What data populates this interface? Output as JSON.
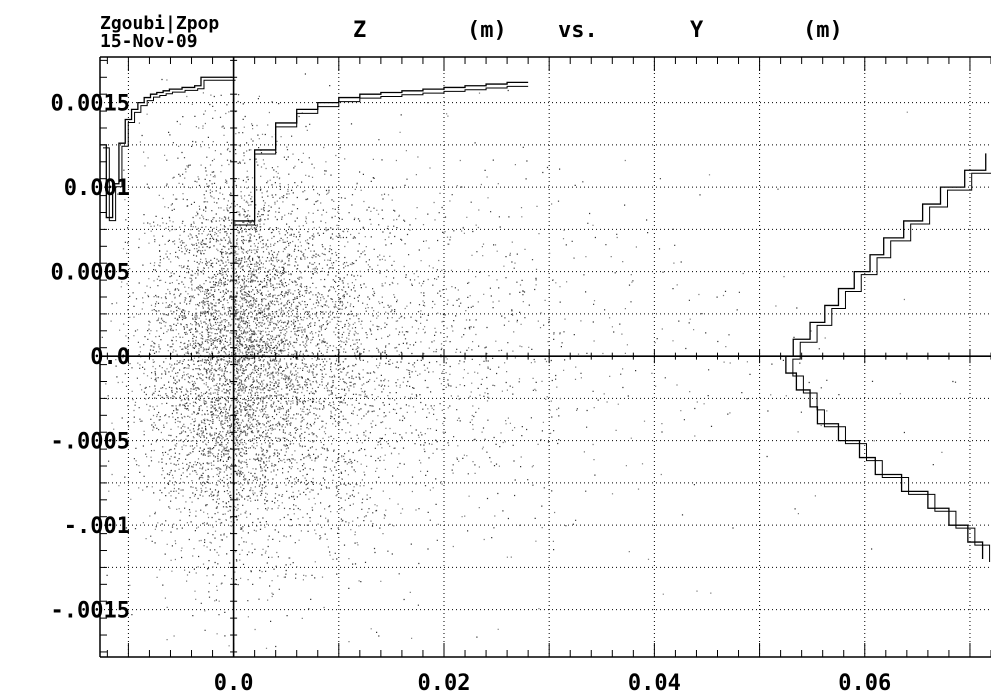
{
  "header": {
    "program": "Zgoubi|Zpop",
    "date": "15-Nov-09",
    "title_words": [
      "Z",
      "(m)",
      "vs.",
      "Y",
      "(m)"
    ]
  },
  "chart_data": {
    "type": "scatter",
    "title": "Z (m) vs. Y (m)",
    "xlabel": "Y (m)",
    "ylabel": "Z (m)",
    "xlim": [
      -0.0127,
      0.072
    ],
    "ylim": [
      -0.00178,
      0.00177
    ],
    "x_ticks": [
      {
        "value": 0.0,
        "label": "0.0"
      },
      {
        "value": 0.02,
        "label": "0.02"
      },
      {
        "value": 0.04,
        "label": "0.04"
      },
      {
        "value": 0.06,
        "label": "0.06"
      }
    ],
    "y_ticks": [
      {
        "value": 0.0015,
        "label": "0.0015"
      },
      {
        "value": 0.001,
        "label": "0.001"
      },
      {
        "value": 0.0005,
        "label": "0.0005"
      },
      {
        "value": 0.0,
        "label": "0.0"
      },
      {
        "value": -0.0005,
        "label": "-.0005"
      },
      {
        "value": -0.001,
        "label": "-.001"
      },
      {
        "value": -0.0015,
        "label": "-.0015"
      }
    ],
    "grid": true,
    "grid_style": "dotted",
    "point_color": "#333333",
    "scatter_description": "Dense cloud of particle coordinates concentrated near Y=0 and Z=0, decaying with increasing Y; a second cloud is drawn mirrored at negative Y.",
    "series": [
      {
        "kind": "histogram",
        "orientation": "horizontal",
        "edges": [
          0.0,
          0.002,
          0.004,
          0.006,
          0.008,
          0.01,
          0.012,
          0.014,
          0.016,
          0.018,
          0.02,
          0.022,
          0.024,
          0.026,
          0.028
        ],
        "values": [
          0.0008,
          0.00122,
          0.00138,
          0.00146,
          0.0015,
          0.00153,
          0.00155,
          0.00156,
          0.00157,
          0.00158,
          0.00159,
          0.0016,
          0.00161,
          0.00162
        ]
      },
      {
        "kind": "histogram",
        "orientation": "horizontal",
        "edges": [
          -0.0127,
          -0.0121,
          -0.0115,
          -0.0109,
          -0.0103,
          -0.0097,
          -0.0091,
          -0.0085,
          -0.0079,
          -0.0073,
          -0.0067,
          -0.0061,
          -0.0055,
          -0.0049,
          -0.0043,
          -0.0037,
          -0.0031,
          -0.0025,
          -0.0019,
          -0.0013,
          -0.0007,
          -0.0001
        ],
        "values": [
          0.00125,
          0.00082,
          0.00102,
          0.00126,
          0.0014,
          0.00146,
          0.0015,
          0.00153,
          0.00155,
          0.00156,
          0.00157,
          0.00158,
          0.00158,
          0.00159,
          0.00159,
          0.0016,
          0.00165,
          0.00165,
          0.00165,
          0.00165,
          0.00165
        ]
      },
      {
        "kind": "histogram",
        "orientation": "vertical",
        "z_centers": [
          0.00115,
          0.00105,
          0.00095,
          0.00085,
          0.00075,
          0.00065,
          0.00055,
          0.00045,
          0.00035,
          0.00025,
          0.00015,
          5e-05,
          -5e-05,
          -0.00015,
          -0.00025,
          -0.00035,
          -0.00045,
          -0.00055,
          -0.00065,
          -0.00075,
          -0.00085,
          -0.00095,
          -0.00105,
          -0.00115
        ],
        "y_values": [
          0.0715,
          0.0695,
          0.0672,
          0.0655,
          0.0637,
          0.0618,
          0.0605,
          0.059,
          0.0575,
          0.0562,
          0.0548,
          0.0532,
          0.0525,
          0.0535,
          0.0548,
          0.0555,
          0.0575,
          0.0595,
          0.061,
          0.0635,
          0.066,
          0.068,
          0.0698,
          0.0712
        ]
      }
    ]
  }
}
